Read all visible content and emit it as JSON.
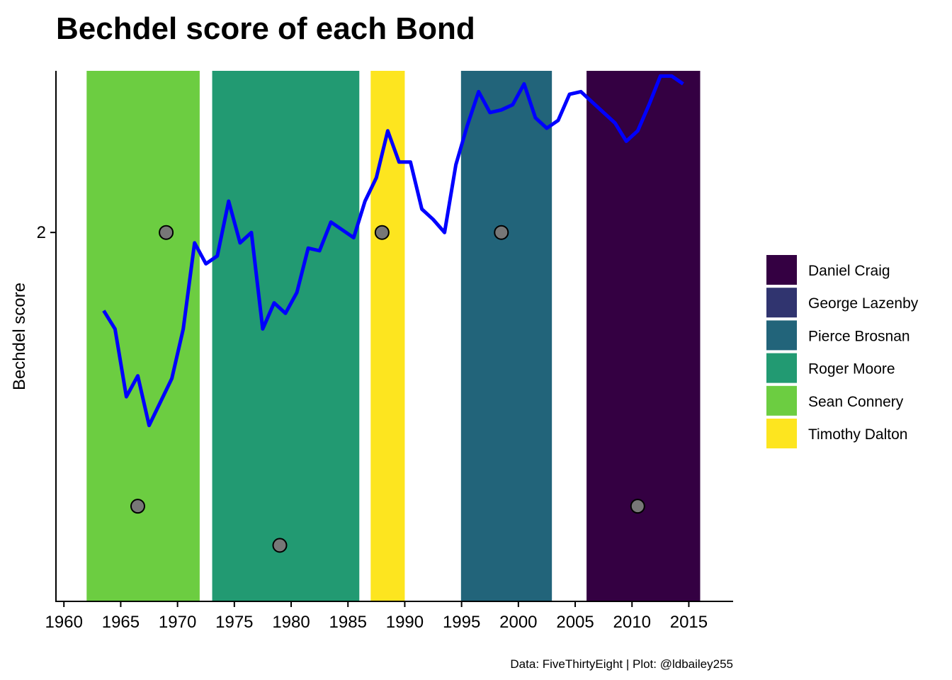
{
  "chart_data": {
    "type": "line",
    "title": "Bechdel score of each Bond",
    "xlabel": "",
    "ylabel": "Bechdel score",
    "caption": "Data: FiveThirtyEight | Plot: @ldbailey255",
    "xlim": [
      1959.3,
      2018.9
    ],
    "ylim": [
      0.585,
      2.62
    ],
    "x_ticks": [
      1960,
      1965,
      1970,
      1975,
      1980,
      1985,
      1990,
      1995,
      2000,
      2005,
      2010,
      2015
    ],
    "y_ticks": [
      2
    ],
    "grid": false,
    "legend_position": "right",
    "actor_eras": [
      {
        "name": "Sean Connery",
        "start": 1962.0,
        "end": 1971.95,
        "color": "#6ccd41"
      },
      {
        "name": "Roger Moore",
        "start": 1973.05,
        "end": 1986.0,
        "color": "#229a72"
      },
      {
        "name": "Timothy Dalton",
        "start": 1987.0,
        "end": 1990.0,
        "color": "#fde51f"
      },
      {
        "name": "Pierce Brosnan",
        "start": 1994.95,
        "end": 2002.95,
        "color": "#22647a"
      },
      {
        "name": "Daniel Craig",
        "start": 2006.0,
        "end": 2016.0,
        "color": "#340042"
      }
    ],
    "legend": [
      {
        "label": "Daniel Craig",
        "color": "#340042"
      },
      {
        "label": "George Lazenby",
        "color": "#30346f"
      },
      {
        "label": "Pierce Brosnan",
        "color": "#22647a"
      },
      {
        "label": "Roger Moore",
        "color": "#229a72"
      },
      {
        "label": "Sean Connery",
        "color": "#6ccd41"
      },
      {
        "label": "Timothy Dalton",
        "color": "#fde51f"
      }
    ],
    "series": [
      {
        "type": "line",
        "color": "#0000ff",
        "x": [
          1963.5,
          1964.5,
          1965.5,
          1966.5,
          1967.5,
          1968.5,
          1969.5,
          1970.5,
          1971.5,
          1972.5,
          1973.5,
          1974.5,
          1975.5,
          1976.5,
          1977.5,
          1978.5,
          1979.5,
          1980.5,
          1981.5,
          1982.5,
          1983.5,
          1984.5,
          1985.5,
          1986.5,
          1987.5,
          1988.5,
          1989.5,
          1990.5,
          1991.5,
          1992.5,
          1993.5,
          1994.5,
          1995.5,
          1996.5,
          1997.5,
          1998.5,
          1999.5,
          2000.5,
          2001.5,
          2002.5,
          2003.5,
          2004.5,
          2005.5,
          2006.5,
          2007.5,
          2008.5,
          2009.5,
          2010.5,
          2011.5,
          2012.5,
          2013.5,
          2014.5
        ],
        "y": [
          1.7,
          1.63,
          1.37,
          1.45,
          1.26,
          1.35,
          1.44,
          1.63,
          1.96,
          1.88,
          1.91,
          2.12,
          1.96,
          2.0,
          1.63,
          1.73,
          1.69,
          1.77,
          1.94,
          1.93,
          2.04,
          2.01,
          1.98,
          2.12,
          2.21,
          2.39,
          2.27,
          2.27,
          2.09,
          2.05,
          2.0,
          2.26,
          2.41,
          2.54,
          2.46,
          2.47,
          2.49,
          2.57,
          2.44,
          2.4,
          2.43,
          2.53,
          2.54,
          2.5,
          2.46,
          2.42,
          2.35,
          2.39,
          2.49,
          2.6,
          2.6,
          2.57
        ]
      },
      {
        "type": "scatter",
        "color": "#777777",
        "x": [
          1966.5,
          1969.0,
          1979.0,
          1988.0,
          1998.5,
          2010.5
        ],
        "y": [
          0.95,
          2.0,
          0.8,
          2.0,
          2.0,
          0.95
        ]
      }
    ]
  }
}
